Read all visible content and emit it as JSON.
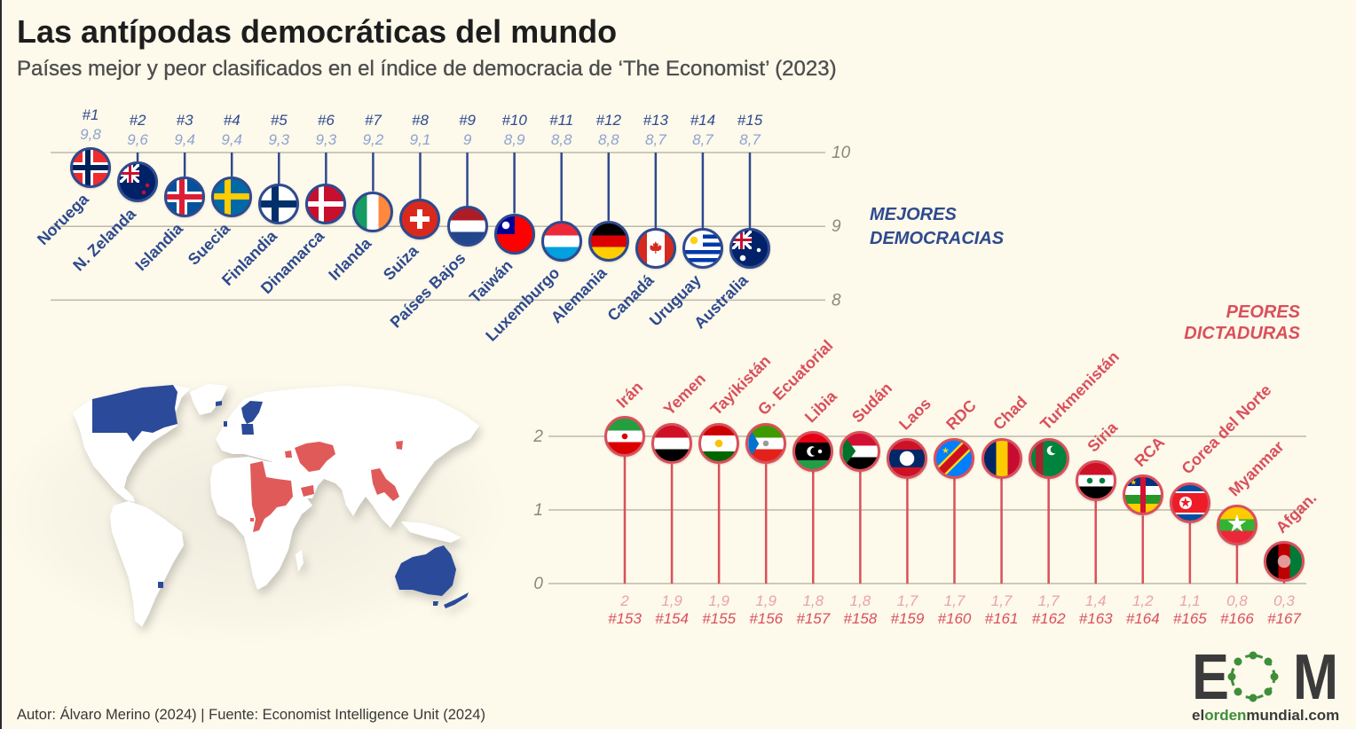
{
  "header": {
    "title": "Las antípodas democráticas del mundo",
    "subtitle": "Países mejor y peor clasificados en el índice de democracia de ‘The Economist’ (2023)"
  },
  "chart_data": [
    {
      "type": "bar",
      "style": "lollipop",
      "title_lines": [
        "MEJORES",
        "DEMOCRACIAS"
      ],
      "categories": [
        "Noruega",
        "N. Zelanda",
        "Islandia",
        "Suecia",
        "Finlandia",
        "Dinamarca",
        "Irlanda",
        "Suiza",
        "Países Bajos",
        "Taiwán",
        "Luxemburgo",
        "Alemania",
        "Canadá",
        "Uruguay",
        "Australia"
      ],
      "ranks": [
        "#1",
        "#2",
        "#3",
        "#4",
        "#5",
        "#6",
        "#7",
        "#8",
        "#9",
        "#10",
        "#11",
        "#12",
        "#13",
        "#14",
        "#15"
      ],
      "values": [
        9.8,
        9.6,
        9.4,
        9.4,
        9.3,
        9.3,
        9.2,
        9.1,
        9.0,
        8.9,
        8.8,
        8.8,
        8.7,
        8.7,
        8.7
      ],
      "value_labels": [
        "9,8",
        "9,6",
        "9,4",
        "9,4",
        "9,3",
        "9,3",
        "9,2",
        "9,1",
        "9",
        "8,9",
        "8,8",
        "8,8",
        "8,7",
        "8,7",
        "8,7"
      ],
      "flags": [
        "norway",
        "new-zealand",
        "iceland",
        "sweden",
        "finland",
        "denmark",
        "ireland",
        "switzerland",
        "netherlands",
        "taiwan",
        "luxembourg",
        "germany",
        "canada",
        "uruguay",
        "australia"
      ],
      "ylim": [
        8,
        10
      ],
      "yticks": [
        10,
        9,
        8
      ],
      "baseline": 10,
      "grid": true,
      "color": "#2e4a8e",
      "value_color": "#8ea3cf"
    },
    {
      "type": "bar",
      "style": "lollipop",
      "title_lines": [
        "PEORES",
        "DICTADURAS"
      ],
      "categories": [
        "Irán",
        "Yemen",
        "Tayikistán",
        "G. Ecuatorial",
        "Libia",
        "Sudán",
        "Laos",
        "RDC",
        "Chad",
        "Turkmenistán",
        "Siria",
        "RCA",
        "Corea del Norte",
        "Myanmar",
        "Afgan."
      ],
      "ranks": [
        "#153",
        "#154",
        "#155",
        "#156",
        "#157",
        "#158",
        "#159",
        "#160",
        "#161",
        "#162",
        "#163",
        "#164",
        "#165",
        "#166",
        "#167"
      ],
      "values": [
        2.0,
        1.9,
        1.9,
        1.9,
        1.8,
        1.8,
        1.7,
        1.7,
        1.7,
        1.7,
        1.4,
        1.2,
        1.1,
        0.8,
        0.3
      ],
      "value_labels": [
        "2",
        "1,9",
        "1,9",
        "1,9",
        "1,8",
        "1,8",
        "1,7",
        "1,7",
        "1,7",
        "1,7",
        "1,4",
        "1,2",
        "1,1",
        "0,8",
        "0,3"
      ],
      "flags": [
        "iran",
        "yemen",
        "tajikistan",
        "equatorial-guinea",
        "libya",
        "sudan",
        "laos",
        "dr-congo",
        "chad",
        "turkmenistan",
        "syria",
        "central-african-republic",
        "north-korea",
        "myanmar",
        "afghanistan"
      ],
      "ylim": [
        0,
        2
      ],
      "yticks": [
        2,
        1,
        0
      ],
      "baseline": 0,
      "grid": true,
      "color": "#d9505b",
      "value_color": "#e9a3a9"
    }
  ],
  "map": {
    "democracy_color": "#2b4a9a",
    "dictatorship_color": "#e05a5a"
  },
  "footer": {
    "credit": "Autor: Álvaro Merino (2024) | Fuente: Economist Intelligence Unit (2024)"
  },
  "logo": {
    "letter_left": "E",
    "letter_right": "M",
    "site_prefix": "el",
    "site_highlight": "orden",
    "site_suffix": "mundial.com",
    "dark_color": "#3b3b3b",
    "accent_color": "#3e8e3a"
  }
}
